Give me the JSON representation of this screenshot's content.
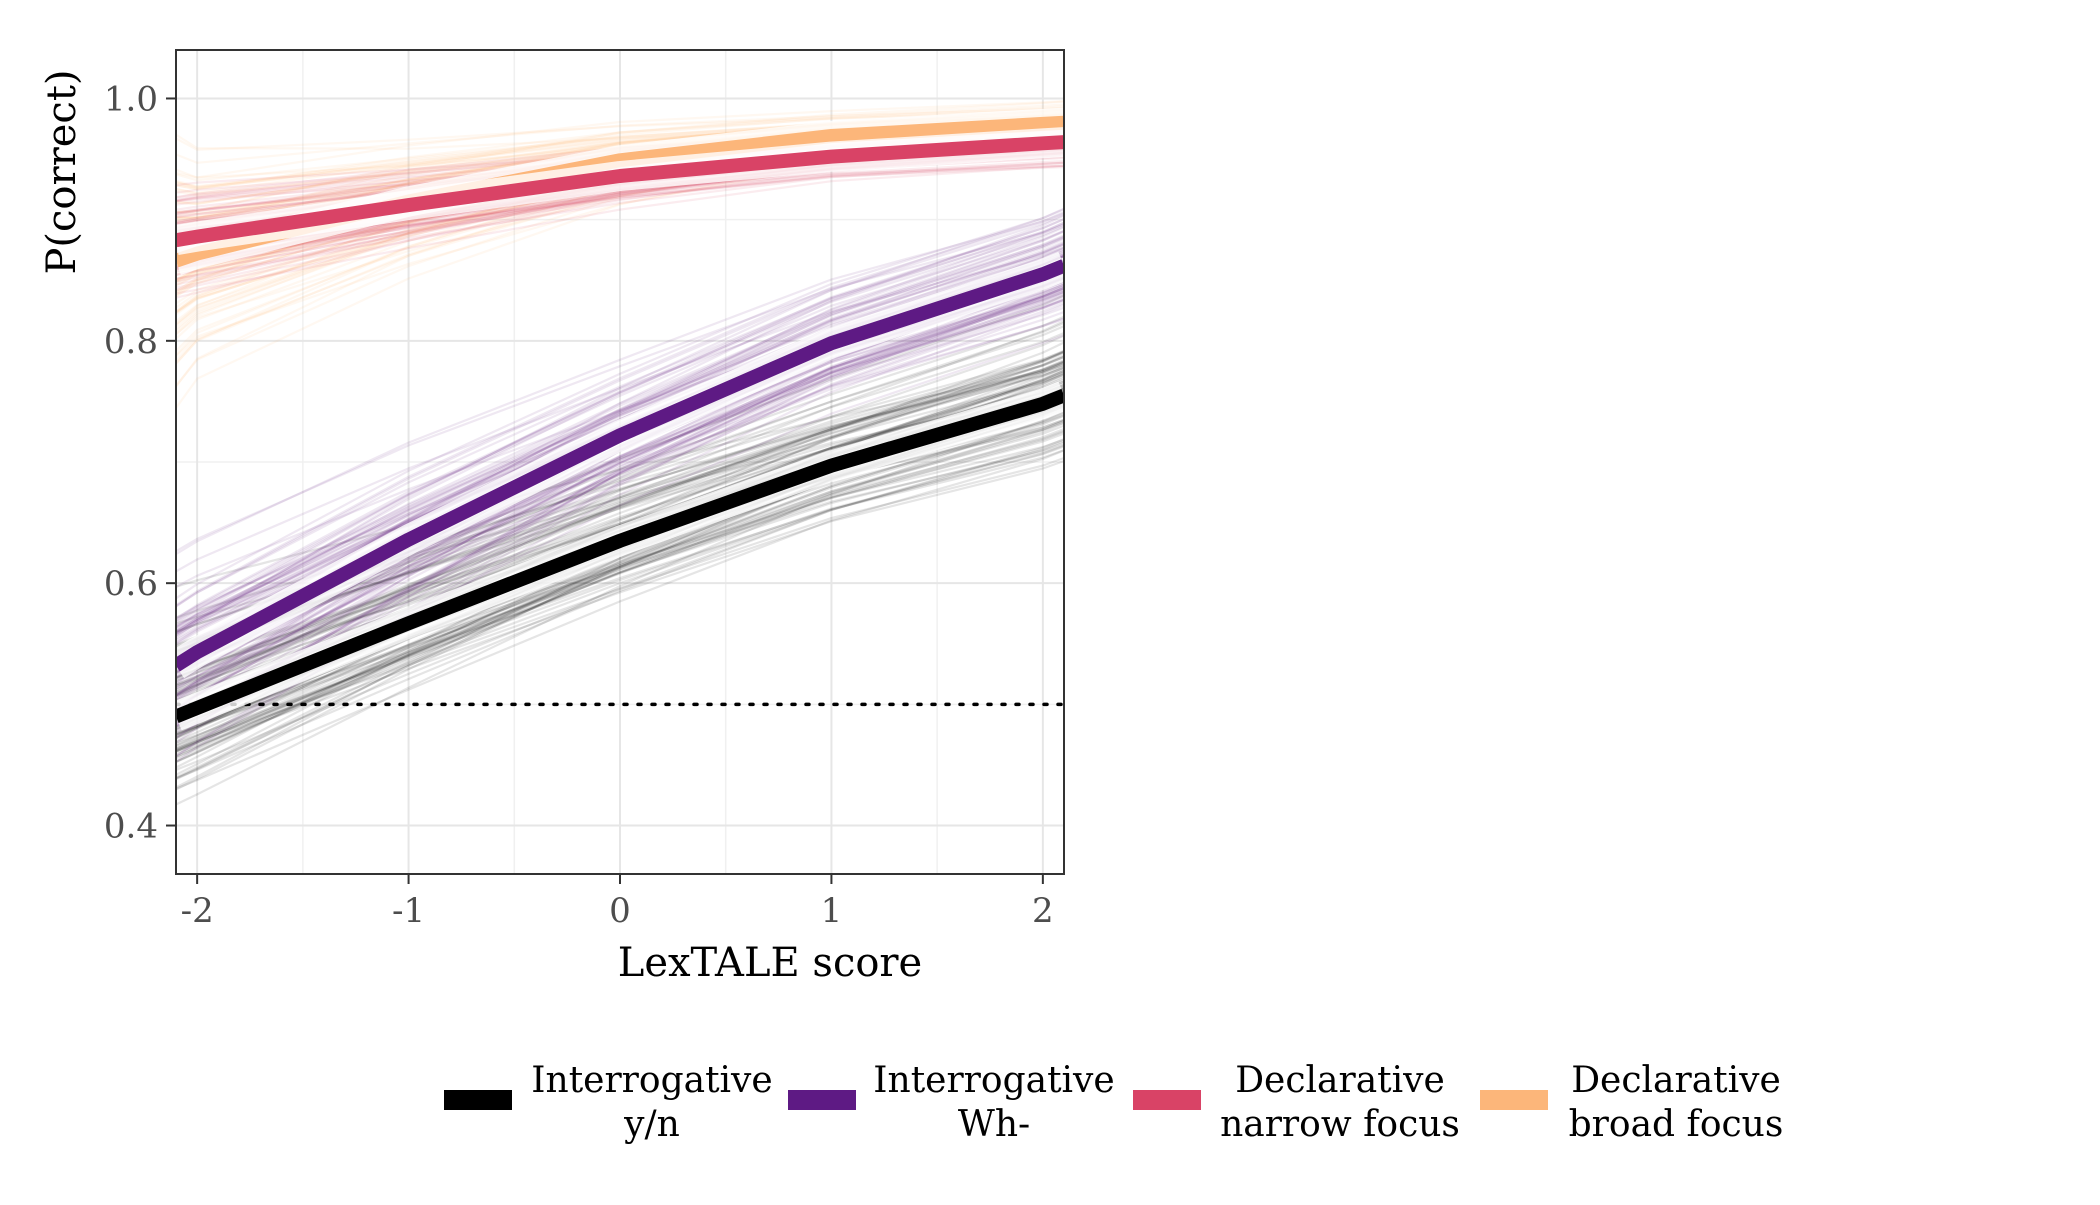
{
  "chart_data": {
    "type": "line",
    "title": "",
    "xlabel": "LexTALE score",
    "ylabel": "P(correct)",
    "xlim": [
      -2.1,
      2.1
    ],
    "ylim": [
      0.36,
      1.04
    ],
    "x_ticks": [
      -2,
      -1,
      0,
      1,
      2
    ],
    "x_tick_labels": [
      "-2",
      "-1",
      "0",
      "1",
      "2"
    ],
    "y_ticks": [
      0.4,
      0.6,
      0.8,
      1.0
    ],
    "y_tick_labels": [
      "0.4",
      "0.6",
      "0.8",
      "1.0"
    ],
    "grid": true,
    "legend_position": "bottom",
    "reference_line": {
      "y": 0.5,
      "style": "dotted"
    },
    "x": [
      -2.1,
      -2,
      -1,
      0,
      1,
      2,
      2.1
    ],
    "series": [
      {
        "name": "Interrogative y/n",
        "legend_lines": [
          "Interrogative",
          "y/n"
        ],
        "color": "#000000",
        "values": [
          0.49,
          0.497,
          0.567,
          0.635,
          0.697,
          0.748,
          0.755
        ],
        "spread": [
          0.06,
          0.06,
          0.055,
          0.05,
          0.045,
          0.045,
          0.045
        ]
      },
      {
        "name": "Interrogative Wh-",
        "legend_lines": [
          "Interrogative",
          "Wh-"
        ],
        "color": "#5e1a84",
        "values": [
          0.532,
          0.543,
          0.636,
          0.722,
          0.798,
          0.855,
          0.862
        ],
        "spread": [
          0.06,
          0.06,
          0.055,
          0.045,
          0.04,
          0.035,
          0.035
        ]
      },
      {
        "name": "Declarative narrow focus",
        "legend_lines": [
          "Declarative",
          "narrow focus"
        ],
        "color": "#d94366",
        "values": [
          0.883,
          0.886,
          0.912,
          0.936,
          0.952,
          0.963,
          0.964
        ],
        "spread": [
          0.03,
          0.03,
          0.025,
          0.02,
          0.015,
          0.015,
          0.015
        ]
      },
      {
        "name": "Declarative broad focus",
        "legend_lines": [
          "Declarative",
          "broad focus"
        ],
        "color": "#fcb67a",
        "values": [
          0.866,
          0.872,
          0.915,
          0.949,
          0.969,
          0.979,
          0.98
        ],
        "spread": [
          0.07,
          0.06,
          0.04,
          0.025,
          0.015,
          0.012,
          0.012
        ]
      }
    ]
  }
}
